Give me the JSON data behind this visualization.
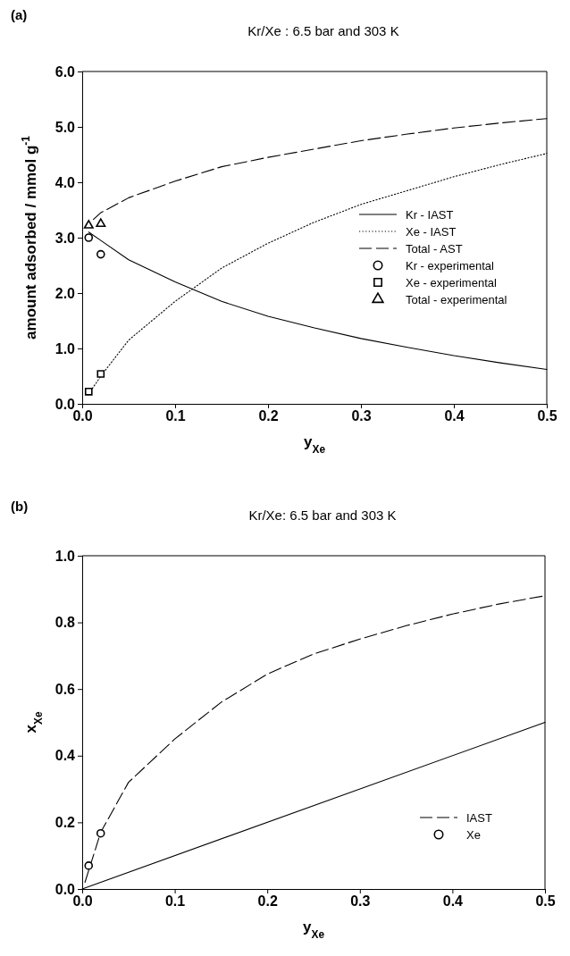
{
  "chart_data": [
    {
      "type": "line",
      "title": "Kr/Xe : 6.5 bar and 303 K",
      "xlabel": "y$_{Xe}$",
      "ylabel": "amount adsorbed / mmol g$^{-1}$",
      "annotations": [
        "(a)"
      ],
      "xlim": [
        0,
        0.5
      ],
      "xticks": [
        {
          "value": 0,
          "label": "0.0"
        },
        0.1,
        0.2,
        0.3,
        0.4,
        0.5
      ],
      "ylim": [
        0,
        6
      ],
      "yticks": [
        {
          "value": 0,
          "label": "0.0"
        },
        {
          "value": 1,
          "label": "1.0"
        },
        {
          "value": 2,
          "label": "2.0"
        },
        {
          "value": 3,
          "label": "3.0"
        },
        {
          "value": 4,
          "label": "4.0"
        },
        {
          "value": 5,
          "label": "5.0"
        },
        {
          "value": 6,
          "label": "6.0"
        }
      ],
      "legend": "right",
      "series": [
        {
          "name": "Kr - IAST",
          "color": "#000000",
          "line_style": "solid",
          "marker": "none",
          "x": [
            0.007,
            0.02,
            0.05,
            0.1,
            0.15,
            0.2,
            0.25,
            0.3,
            0.35,
            0.4,
            0.45,
            0.5
          ],
          "values": [
            3.1,
            2.95,
            2.6,
            2.2,
            1.85,
            1.58,
            1.37,
            1.18,
            1.02,
            0.87,
            0.74,
            0.62
          ]
        },
        {
          "name": "Xe - IAST",
          "color": "#000000",
          "line_style": "dotted",
          "marker": "none",
          "x": [
            0.007,
            0.02,
            0.05,
            0.1,
            0.15,
            0.2,
            0.25,
            0.3,
            0.35,
            0.4,
            0.45,
            0.5
          ],
          "values": [
            0.18,
            0.5,
            1.15,
            1.85,
            2.45,
            2.9,
            3.28,
            3.6,
            3.85,
            4.1,
            4.32,
            4.52
          ]
        },
        {
          "name": "Total - AST",
          "color": "#000000",
          "line_style": "dashed",
          "marker": "none",
          "x": [
            0.012,
            0.02,
            0.05,
            0.1,
            0.15,
            0.2,
            0.25,
            0.3,
            0.35,
            0.4,
            0.45,
            0.5
          ],
          "values": [
            3.33,
            3.45,
            3.72,
            4.02,
            4.28,
            4.45,
            4.6,
            4.75,
            4.87,
            4.98,
            5.07,
            5.15
          ]
        },
        {
          "name": "Kr - experimental",
          "type": "scatter",
          "color": "#000000",
          "marker": "circle",
          "x": [
            0.007,
            0.02
          ],
          "values": [
            3.0,
            2.7
          ]
        },
        {
          "name": "Xe - experimental",
          "type": "scatter",
          "color": "#000000",
          "marker": "square",
          "x": [
            0.007,
            0.02
          ],
          "values": [
            0.22,
            0.54
          ]
        },
        {
          "name": "Total - experimental",
          "type": "scatter",
          "color": "#000000",
          "marker": "triangle",
          "x": [
            0.007,
            0.02
          ],
          "values": [
            3.22,
            3.25
          ]
        }
      ]
    },
    {
      "type": "line",
      "title": "Kr/Xe: 6.5 bar and 303 K",
      "xlabel": "y$_{Xe}$",
      "ylabel": "x$_{Xe}$",
      "annotations": [
        "(b)"
      ],
      "xlim": [
        0,
        0.5
      ],
      "xticks": [
        {
          "value": 0,
          "label": "0.0"
        },
        0.1,
        0.2,
        0.3,
        0.4,
        0.5
      ],
      "ylim": [
        0,
        1
      ],
      "yticks": [
        {
          "value": 0,
          "label": "0.0"
        },
        0.2,
        0.4,
        0.6,
        0.8,
        {
          "value": 1,
          "label": "1.0"
        }
      ],
      "legend": "bottom right",
      "series": [
        {
          "name": "IAST",
          "color": "#000000",
          "line_style": "dashed",
          "marker": "none",
          "x": [
            0.003,
            0.02,
            0.05,
            0.1,
            0.15,
            0.2,
            0.25,
            0.3,
            0.35,
            0.4,
            0.45,
            0.5
          ],
          "values": [
            0.02,
            0.17,
            0.32,
            0.45,
            0.56,
            0.645,
            0.705,
            0.75,
            0.79,
            0.825,
            0.855,
            0.88
          ]
        },
        {
          "name": "Xe",
          "type": "scatter",
          "color": "#000000",
          "marker": "circle",
          "x": [
            0.007,
            0.02
          ],
          "values": [
            0.07,
            0.167
          ]
        },
        {
          "color": "#000000",
          "line_style": "solid",
          "marker": "none",
          "x": [
            0,
            0.5
          ],
          "values": [
            0,
            0.5
          ]
        }
      ]
    }
  ]
}
